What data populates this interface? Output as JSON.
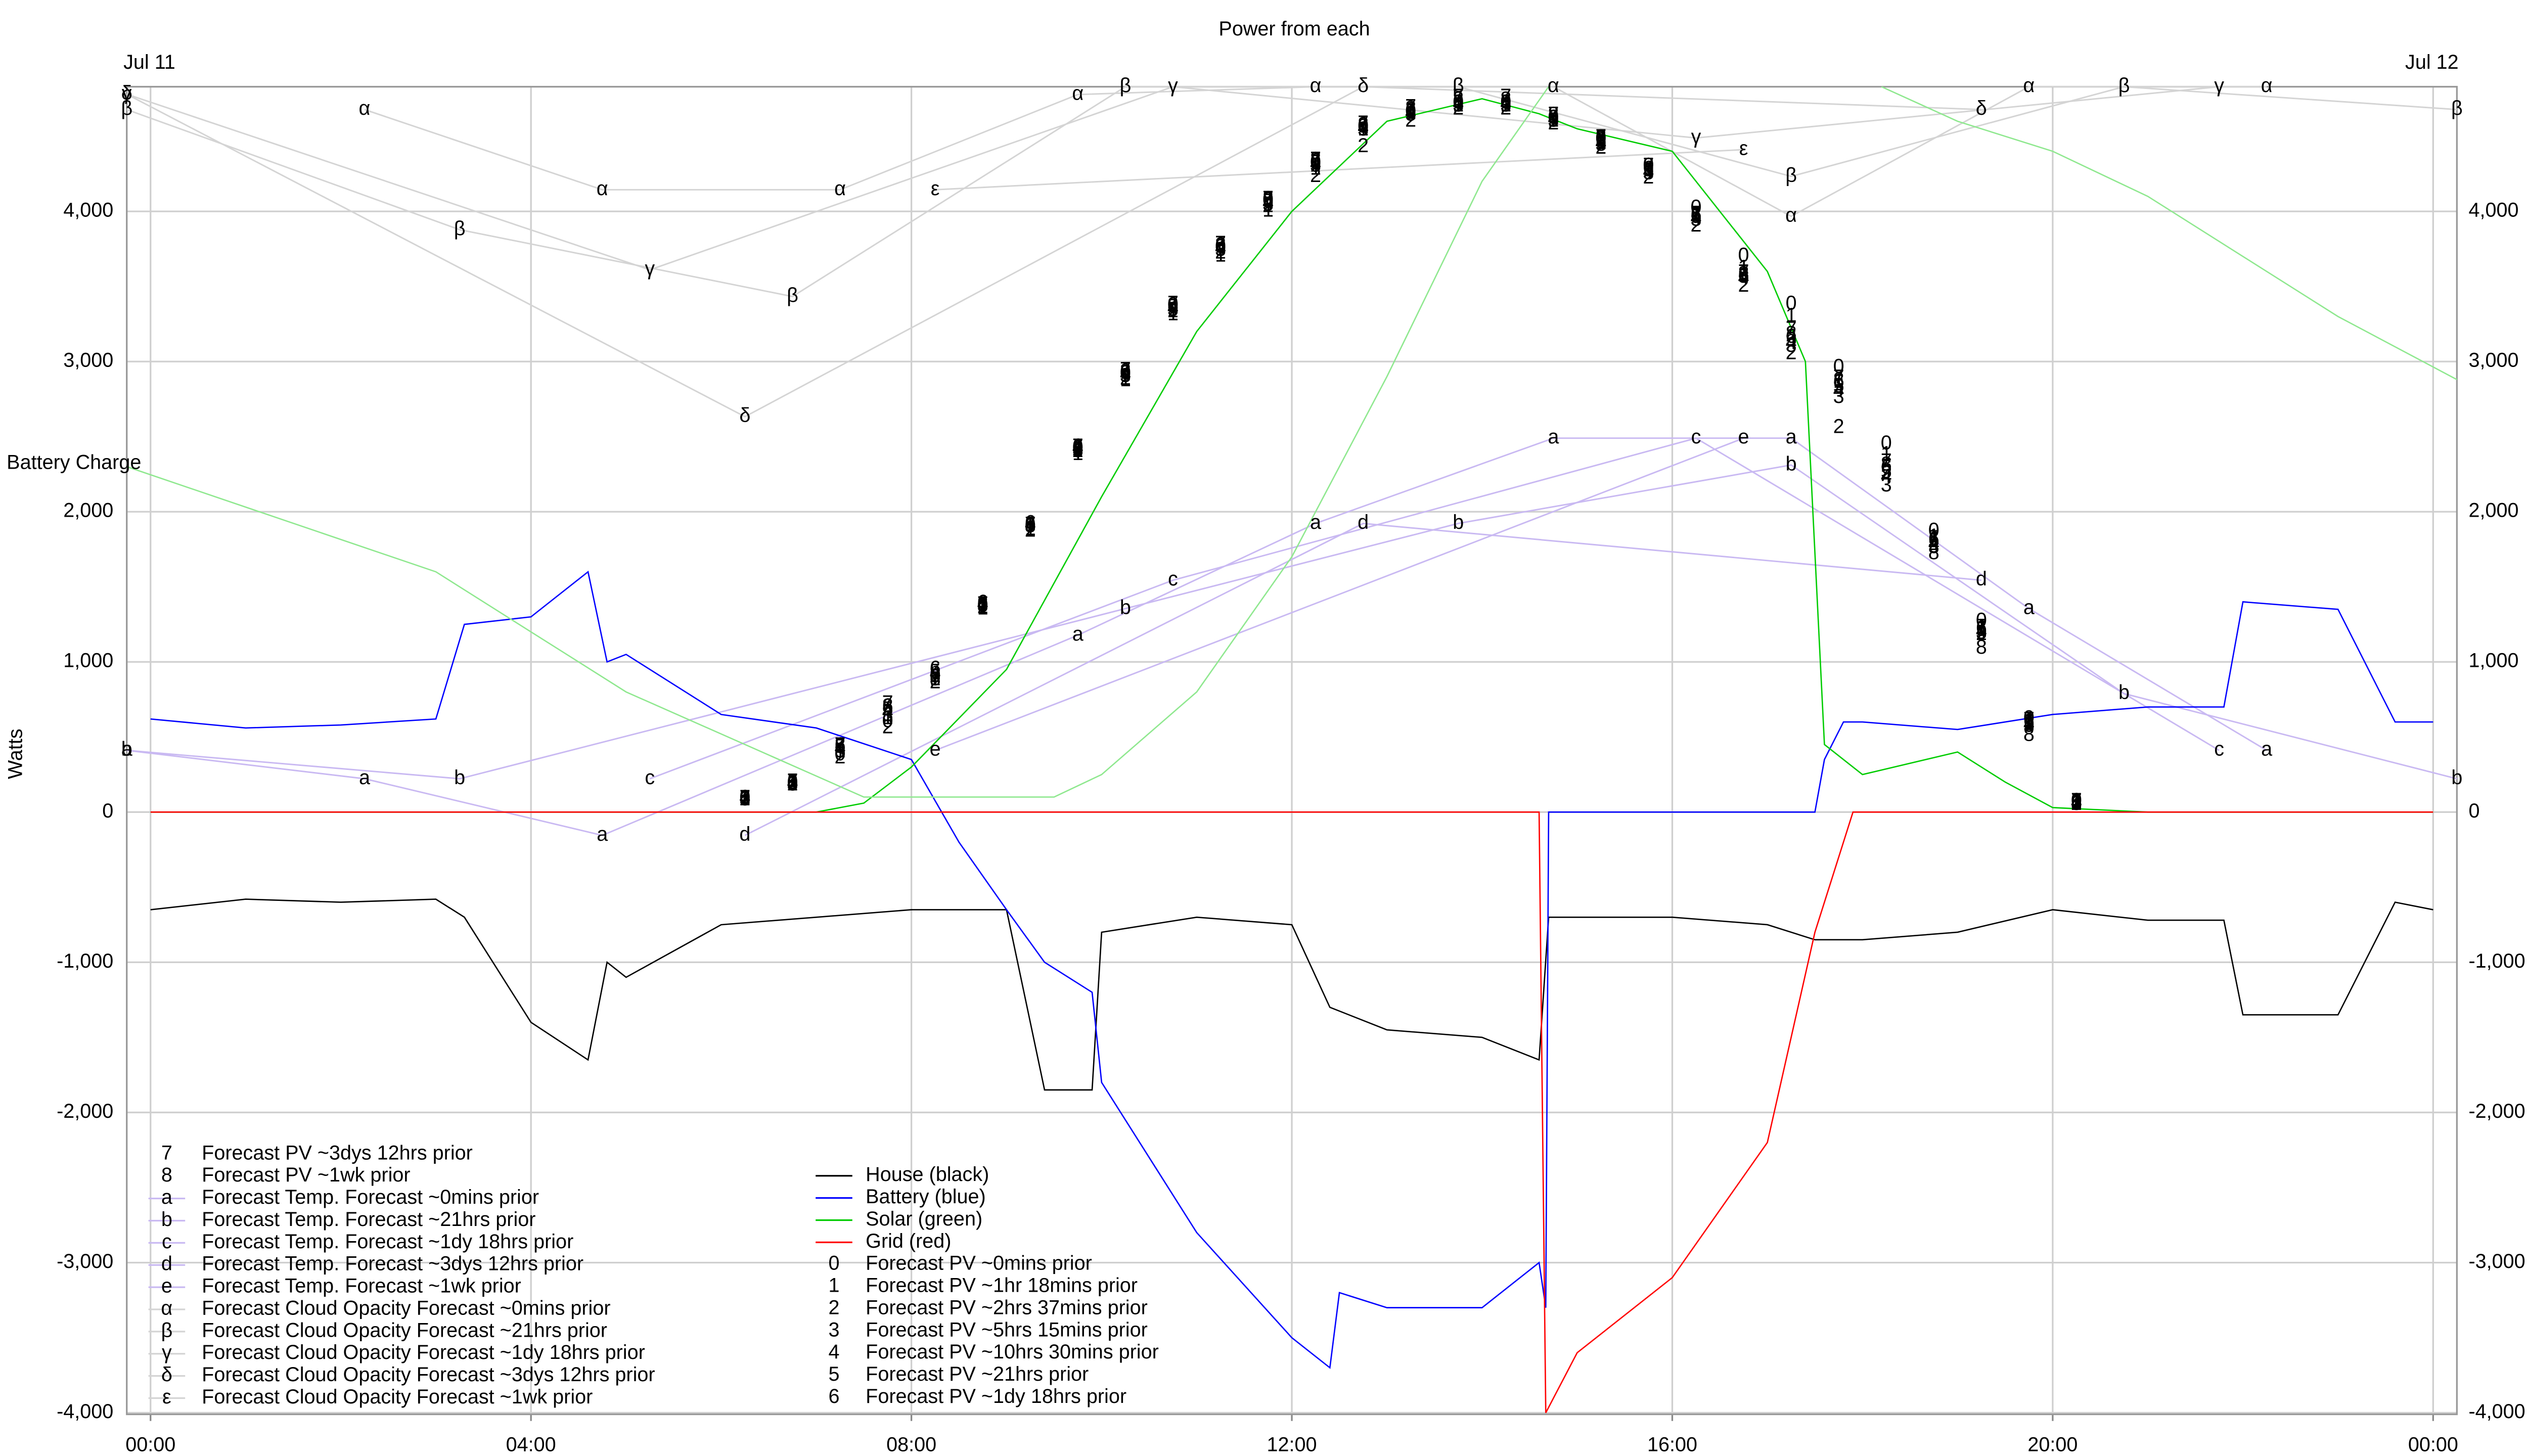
{
  "chart_data": {
    "type": "line",
    "title": "Power from each",
    "date_labels": [
      "Jul 11",
      "Jul 12"
    ],
    "ylabel": "Watts",
    "grid": true,
    "xlim": [
      -0.25,
      24.25
    ],
    "xticks": [
      {
        "value": 0,
        "label": "00:00"
      },
      {
        "value": 4,
        "label": "04:00"
      },
      {
        "value": 8,
        "label": "08:00"
      },
      {
        "value": 12,
        "label": "12:00"
      },
      {
        "value": 16,
        "label": "16:00"
      },
      {
        "value": 20,
        "label": "20:00"
      },
      {
        "value": 24,
        "label": "00:00"
      }
    ],
    "ylim": [
      -4010,
      4830
    ],
    "yticks": [
      {
        "value": -4000,
        "label": "-4,000"
      },
      {
        "value": -3000,
        "label": "-3,000"
      },
      {
        "value": -2000,
        "label": "-2,000"
      },
      {
        "value": -1000,
        "label": "-1,000"
      },
      0,
      {
        "value": 1000,
        "label": "1,000"
      },
      {
        "value": 2000,
        "label": "2,000"
      },
      {
        "value": 3000,
        "label": "3,000"
      },
      {
        "value": 4000,
        "label": "4,000"
      }
    ],
    "series": [
      {
        "name": "House (black)",
        "color": "#000000",
        "x": [
          0,
          1,
          2,
          3,
          3.3,
          4,
          4.6,
          4.8,
          5,
          6,
          7,
          8,
          9,
          9.4,
          9.9,
          10,
          11,
          12,
          12.4,
          13,
          14,
          14.6,
          14.7,
          15,
          16,
          17,
          17.5,
          17.8,
          18,
          19,
          20,
          21,
          21.8,
          22,
          23,
          23.6,
          24
        ],
        "values": [
          -650,
          -580,
          -600,
          -580,
          -700,
          -1400,
          -1650,
          -1000,
          -1100,
          -750,
          -700,
          -650,
          -650,
          -1850,
          -1850,
          -800,
          -700,
          -750,
          -1300,
          -1450,
          -1500,
          -1650,
          -700,
          -700,
          -700,
          -750,
          -850,
          -850,
          -850,
          -800,
          -650,
          -720,
          -720,
          -1350,
          -1350,
          -600,
          -650
        ]
      },
      {
        "name": "Battery (blue)",
        "color": "#0000ff",
        "x": [
          0,
          1,
          2,
          3,
          3.3,
          4,
          4.6,
          4.8,
          5,
          6,
          7,
          8,
          8.5,
          9,
          9.4,
          9.9,
          10,
          11,
          12,
          12.4,
          12.5,
          13,
          14,
          14.6,
          14.67,
          14.7,
          15,
          16,
          17,
          17.5,
          17.6,
          17.8,
          18,
          19,
          20,
          21,
          21.8,
          22,
          23,
          23.6,
          24
        ],
        "values": [
          620,
          560,
          580,
          620,
          1250,
          1300,
          1600,
          1000,
          1050,
          650,
          560,
          350,
          -200,
          -650,
          -1000,
          -1200,
          -1800,
          -2800,
          -3500,
          -3700,
          -3200,
          -3300,
          -3300,
          -3000,
          -3300,
          0,
          0,
          0,
          0,
          0,
          350,
          600,
          600,
          550,
          650,
          700,
          700,
          1400,
          1350,
          600,
          600
        ]
      },
      {
        "name": "Solar (green)",
        "color": "#00cc00",
        "x": [
          0,
          7,
          7.5,
          8,
          9,
          10,
          11,
          12,
          13,
          14,
          14.6,
          15,
          16,
          17,
          17.4,
          17.6,
          18,
          19,
          19.5,
          20,
          21,
          24
        ],
        "values": [
          0,
          0,
          60,
          300,
          950,
          2100,
          3200,
          4000,
          4600,
          4750,
          4650,
          4550,
          4400,
          3600,
          3000,
          450,
          250,
          400,
          200,
          30,
          0,
          0
        ]
      },
      {
        "name": "Grid (red)",
        "color": "#ff0000",
        "x": [
          0,
          14.6,
          14.67,
          15,
          16,
          17,
          17.5,
          17.9,
          18,
          24
        ],
        "values": [
          0,
          0,
          -4000,
          -3600,
          -3100,
          -2200,
          -800,
          0,
          0,
          0
        ]
      },
      {
        "name": "Forecast PV ~0mins prior",
        "symbol": "0",
        "color": "#000000",
        "show_line": false,
        "x": [
          6.25,
          6.75,
          7.25,
          7.75,
          8.25,
          8.75,
          9.25,
          9.75,
          10.25,
          10.75,
          11.25,
          11.75,
          12.25,
          12.75,
          13.25,
          13.75,
          14.25,
          14.75,
          15.25,
          15.75,
          16.25,
          16.75,
          17.25,
          17.75,
          18.25,
          18.75,
          19.25,
          19.75,
          20.25
        ],
        "values": [
          90,
          190,
          380,
          600,
          900,
          1370,
          1900,
          2420,
          2920,
          3370,
          3760,
          4070,
          4320,
          4560,
          4660,
          4720,
          4720,
          4620,
          4480,
          4300,
          4020,
          3700,
          3380,
          2960,
          2450,
          1870,
          1270,
          620,
          70
        ]
      },
      {
        "name": "Forecast PV ~1hr 18mins prior",
        "symbol": "1",
        "color": "#000000",
        "show_line": false,
        "x": [
          6.25,
          6.75,
          7.25,
          7.75,
          8.25,
          8.75,
          9.25,
          9.75,
          10.25,
          10.75,
          11.25,
          11.75,
          12.25,
          12.75,
          13.25,
          13.75,
          14.25,
          14.75,
          15.25,
          15.75,
          16.25,
          16.75,
          17.25,
          17.75,
          18.25,
          18.75,
          19.25,
          19.75,
          20.25
        ],
        "values": [
          90,
          200,
          400,
          620,
          880,
          1350,
          1880,
          2380,
          2870,
          3310,
          3700,
          4000,
          4280,
          4540,
          4650,
          4700,
          4700,
          4600,
          4450,
          4270,
          3980,
          3620,
          3300,
          2860,
          2380,
          1830,
          1220,
          600,
          60
        ]
      },
      {
        "name": "Forecast PV ~2hrs 37mins prior",
        "symbol": "2",
        "color": "#000000",
        "show_line": false,
        "x": [
          6.25,
          6.75,
          7.25,
          7.75,
          8.25,
          8.75,
          9.25,
          9.75,
          10.25,
          10.75,
          11.25,
          11.75,
          12.25,
          12.75,
          13.25,
          13.75,
          14.25,
          14.75,
          15.25,
          15.75,
          16.25,
          16.75,
          17.25,
          17.75,
          18.25,
          18.75,
          19.25,
          19.75,
          20.25
        ],
        "values": [
          80,
          180,
          360,
          560,
          860,
          1360,
          1870,
          2400,
          2880,
          3330,
          3720,
          4030,
          4230,
          4430,
          4600,
          4680,
          4680,
          4580,
          4420,
          4220,
          3900,
          3500,
          3050,
          2560,
          2250,
          1780,
          1180,
          580,
          50
        ]
      },
      {
        "name": "Forecast PV ~5hrs 15mins prior",
        "symbol": "3",
        "color": "#000000",
        "show_line": false,
        "x": [
          6.25,
          6.75,
          7.25,
          7.75,
          8.25,
          8.75,
          9.25,
          9.75,
          10.25,
          10.75,
          11.25,
          11.75,
          12.25,
          12.75,
          13.25,
          13.75,
          14.25,
          14.75,
          15.25,
          15.75,
          16.25,
          16.75,
          17.25,
          17.75,
          18.25,
          18.75,
          19.25,
          19.75,
          20.25
        ],
        "values": [
          80,
          180,
          400,
          640,
          900,
          1370,
          1900,
          2410,
          2900,
          3340,
          3740,
          4040,
          4300,
          4540,
          4640,
          4700,
          4700,
          4600,
          4440,
          4250,
          3940,
          3560,
          3100,
          2760,
          2170,
          1760,
          1190,
          570,
          50
        ]
      },
      {
        "name": "Forecast PV ~10hrs 30mins prior",
        "symbol": "4",
        "color": "#000000",
        "show_line": false,
        "x": [
          6.25,
          6.75,
          7.25,
          7.75,
          8.25,
          8.75,
          9.25,
          9.75,
          10.25,
          10.75,
          11.25,
          11.75,
          12.25,
          12.75,
          13.25,
          13.75,
          14.25,
          14.75,
          15.25,
          15.75,
          16.25,
          16.75,
          17.25,
          17.75,
          18.25,
          18.75,
          19.25,
          19.75,
          20.25
        ],
        "values": [
          90,
          190,
          420,
          660,
          920,
          1380,
          1910,
          2420,
          2910,
          3350,
          3750,
          4050,
          4310,
          4550,
          4650,
          4710,
          4710,
          4610,
          4450,
          4260,
          3950,
          3550,
          3120,
          2800,
          2230,
          1780,
          1200,
          580,
          60
        ]
      },
      {
        "name": "Forecast PV ~21hrs prior",
        "symbol": "5",
        "color": "#000000",
        "show_line": false,
        "x": [
          6.25,
          6.75,
          7.25,
          7.75,
          8.25,
          8.75,
          9.25,
          9.75,
          10.25,
          10.75,
          11.25,
          11.75,
          12.25,
          12.75,
          13.25,
          13.75,
          14.25,
          14.75,
          15.25,
          15.75,
          16.25,
          16.75,
          17.25,
          17.75,
          18.25,
          18.75,
          19.25,
          19.75,
          20.25
        ],
        "values": [
          90,
          190,
          430,
          680,
          930,
          1380,
          1900,
          2400,
          2920,
          3360,
          3760,
          4060,
          4320,
          4560,
          4660,
          4720,
          4720,
          4620,
          4460,
          4270,
          3960,
          3560,
          3140,
          2830,
          2260,
          1800,
          1210,
          590,
          60
        ]
      },
      {
        "name": "Forecast PV ~1dy 18hrs prior",
        "symbol": "6",
        "color": "#000000",
        "show_line": false,
        "x": [
          6.25,
          6.75,
          7.25,
          7.75,
          8.25,
          8.75,
          9.25,
          9.75,
          10.25,
          10.75,
          11.25,
          11.75,
          12.25,
          12.75,
          13.25,
          13.75,
          14.25,
          14.75,
          15.25,
          15.75,
          16.25,
          16.75,
          17.25,
          17.75,
          18.25,
          18.75,
          19.25,
          19.75,
          20.25
        ],
        "values": [
          90,
          190,
          440,
          700,
          950,
          1390,
          1920,
          2430,
          2930,
          3370,
          3770,
          4070,
          4330,
          4570,
          4670,
          4720,
          4720,
          4620,
          4470,
          4280,
          3970,
          3570,
          3160,
          2860,
          2290,
          1810,
          1220,
          600,
          60
        ]
      },
      {
        "name": "Forecast PV ~3dys 12hrs prior",
        "symbol": "7",
        "color": "#000000",
        "show_line": false,
        "x": [
          6.25,
          6.75,
          7.25,
          7.75,
          8.25,
          8.75,
          9.25,
          9.75,
          10.25,
          10.75,
          11.25,
          11.75,
          12.25,
          12.75,
          13.25,
          13.75,
          14.25,
          14.75,
          15.25,
          15.75,
          16.25,
          16.75,
          17.25,
          17.75,
          18.25,
          18.75,
          19.25,
          19.75,
          20.25
        ],
        "values": [
          90,
          200,
          440,
          720,
          900,
          1380,
          1910,
          2430,
          2940,
          3380,
          3780,
          4080,
          4340,
          4580,
          4690,
          4760,
          4760,
          4640,
          4490,
          4300,
          3980,
          3590,
          3210,
          2890,
          2330,
          1820,
          1230,
          610,
          70
        ]
      },
      {
        "name": "Forecast PV ~1wk prior",
        "symbol": "8",
        "color": "#000000",
        "show_line": false,
        "x": [
          6.25,
          6.75,
          7.25,
          7.75,
          8.25,
          8.75,
          9.25,
          9.75,
          10.25,
          10.75,
          11.25,
          11.75,
          12.25,
          12.75,
          13.25,
          13.75,
          14.25,
          14.75,
          15.25,
          15.75,
          16.25,
          16.75,
          17.25,
          17.75,
          18.25,
          18.75,
          19.25,
          19.75,
          20.25
        ],
        "values": [
          90,
          190,
          440,
          700,
          880,
          1380,
          1900,
          2420,
          2930,
          3370,
          3770,
          4080,
          4340,
          4570,
          4680,
          4740,
          4740,
          4640,
          4490,
          4300,
          3980,
          3580,
          3180,
          2870,
          2310,
          1720,
          1090,
          510,
          60
        ]
      },
      {
        "name": "Forecast Temp. Forecast ~0mins prior",
        "symbol": "a",
        "color": "#c9b9f2",
        "show_line": true,
        "x": [
          -0.25,
          2.25,
          4.75,
          9.75,
          12.25,
          14.75,
          17.25,
          19.75,
          22.25
        ],
        "values": [
          411,
          222,
          -155,
          1178,
          1922,
          2490,
          2490,
          1355,
          411
        ]
      },
      {
        "name": "Forecast Temp. Forecast ~21hrs prior",
        "symbol": "b",
        "color": "#c9b9f2",
        "show_line": true,
        "x": [
          -0.25,
          3.25,
          10.25,
          13.75,
          17.25,
          20.75,
          24.25
        ],
        "values": [
          411,
          222,
          1355,
          1922,
          2311,
          789,
          222
        ]
      },
      {
        "name": "Forecast Temp. Forecast ~1dy 18hrs prior",
        "symbol": "c",
        "color": "#c9b9f2",
        "show_line": true,
        "x": [
          5.25,
          10.75,
          16.25,
          21.75
        ],
        "values": [
          222,
          1544,
          2490,
          411
        ]
      },
      {
        "name": "Forecast Temp. Forecast ~3dys 12hrs prior",
        "symbol": "d",
        "color": "#c9b9f2",
        "show_line": true,
        "x": [
          6.25,
          12.75,
          19.25
        ],
        "values": [
          -155,
          1922,
          1544
        ]
      },
      {
        "name": "Forecast Temp. Forecast ~1wk prior",
        "symbol": "e",
        "color": "#c9b9f2",
        "show_line": true,
        "x": [
          8.25,
          16.75
        ],
        "values": [
          411,
          2490
        ]
      },
      {
        "name": "Forecast Cloud Opacity Forecast ~0mins prior",
        "symbol": "α",
        "color": "#d4d4d4",
        "show_line": true,
        "x": [
          2.25,
          4.75,
          7.25,
          9.75,
          12.25,
          14.75,
          17.25,
          19.75,
          22.25
        ],
        "values": [
          4678,
          4144,
          4144,
          4778,
          4830,
          4830,
          3967,
          4830,
          4830
        ]
      },
      {
        "name": "Forecast Cloud Opacity Forecast ~21hrs prior",
        "symbol": "β",
        "color": "#d4d4d4",
        "show_line": true,
        "x": [
          -0.25,
          3.25,
          6.75,
          10.25,
          13.75,
          17.25,
          20.75,
          24.25
        ],
        "values": [
          4678,
          3878,
          3433,
          4830,
          4830,
          4233,
          4830,
          4678
        ]
      },
      {
        "name": "Forecast Cloud Opacity Forecast ~1dy 18hrs prior",
        "symbol": "γ",
        "color": "#d4d4d4",
        "show_line": true,
        "x": [
          -0.25,
          5.25,
          10.75,
          16.25,
          21.75
        ],
        "values": [
          4780,
          3611,
          4830,
          4489,
          4830
        ]
      },
      {
        "name": "Forecast Cloud Opacity Forecast ~3dys 12hrs prior",
        "symbol": "δ",
        "color": "#d4d4d4",
        "show_line": true,
        "x": [
          -0.25,
          6.25,
          12.75,
          19.25
        ],
        "values": [
          4780,
          2633,
          4830,
          4678
        ]
      },
      {
        "name": "Forecast Cloud Opacity Forecast ~1wk prior",
        "symbol": "ε",
        "color": "#d4d4d4",
        "show_line": true,
        "x": [
          8.25,
          16.75
        ],
        "values": [
          4144,
          4411
        ]
      },
      {
        "name": "Battery Charge",
        "color": "#8fe88f",
        "x": [
          -0.25,
          3,
          5,
          7.5,
          9.5,
          10,
          11,
          12,
          13,
          14,
          14.7,
          16,
          18.2,
          19,
          20,
          21,
          22,
          23,
          24.25
        ],
        "values": [
          2300,
          1600,
          800,
          100,
          100,
          250,
          800,
          1700,
          2900,
          4200,
          4830,
          null,
          4830,
          4600,
          4400,
          4100,
          3700,
          3300,
          2880
        ]
      }
    ]
  }
}
